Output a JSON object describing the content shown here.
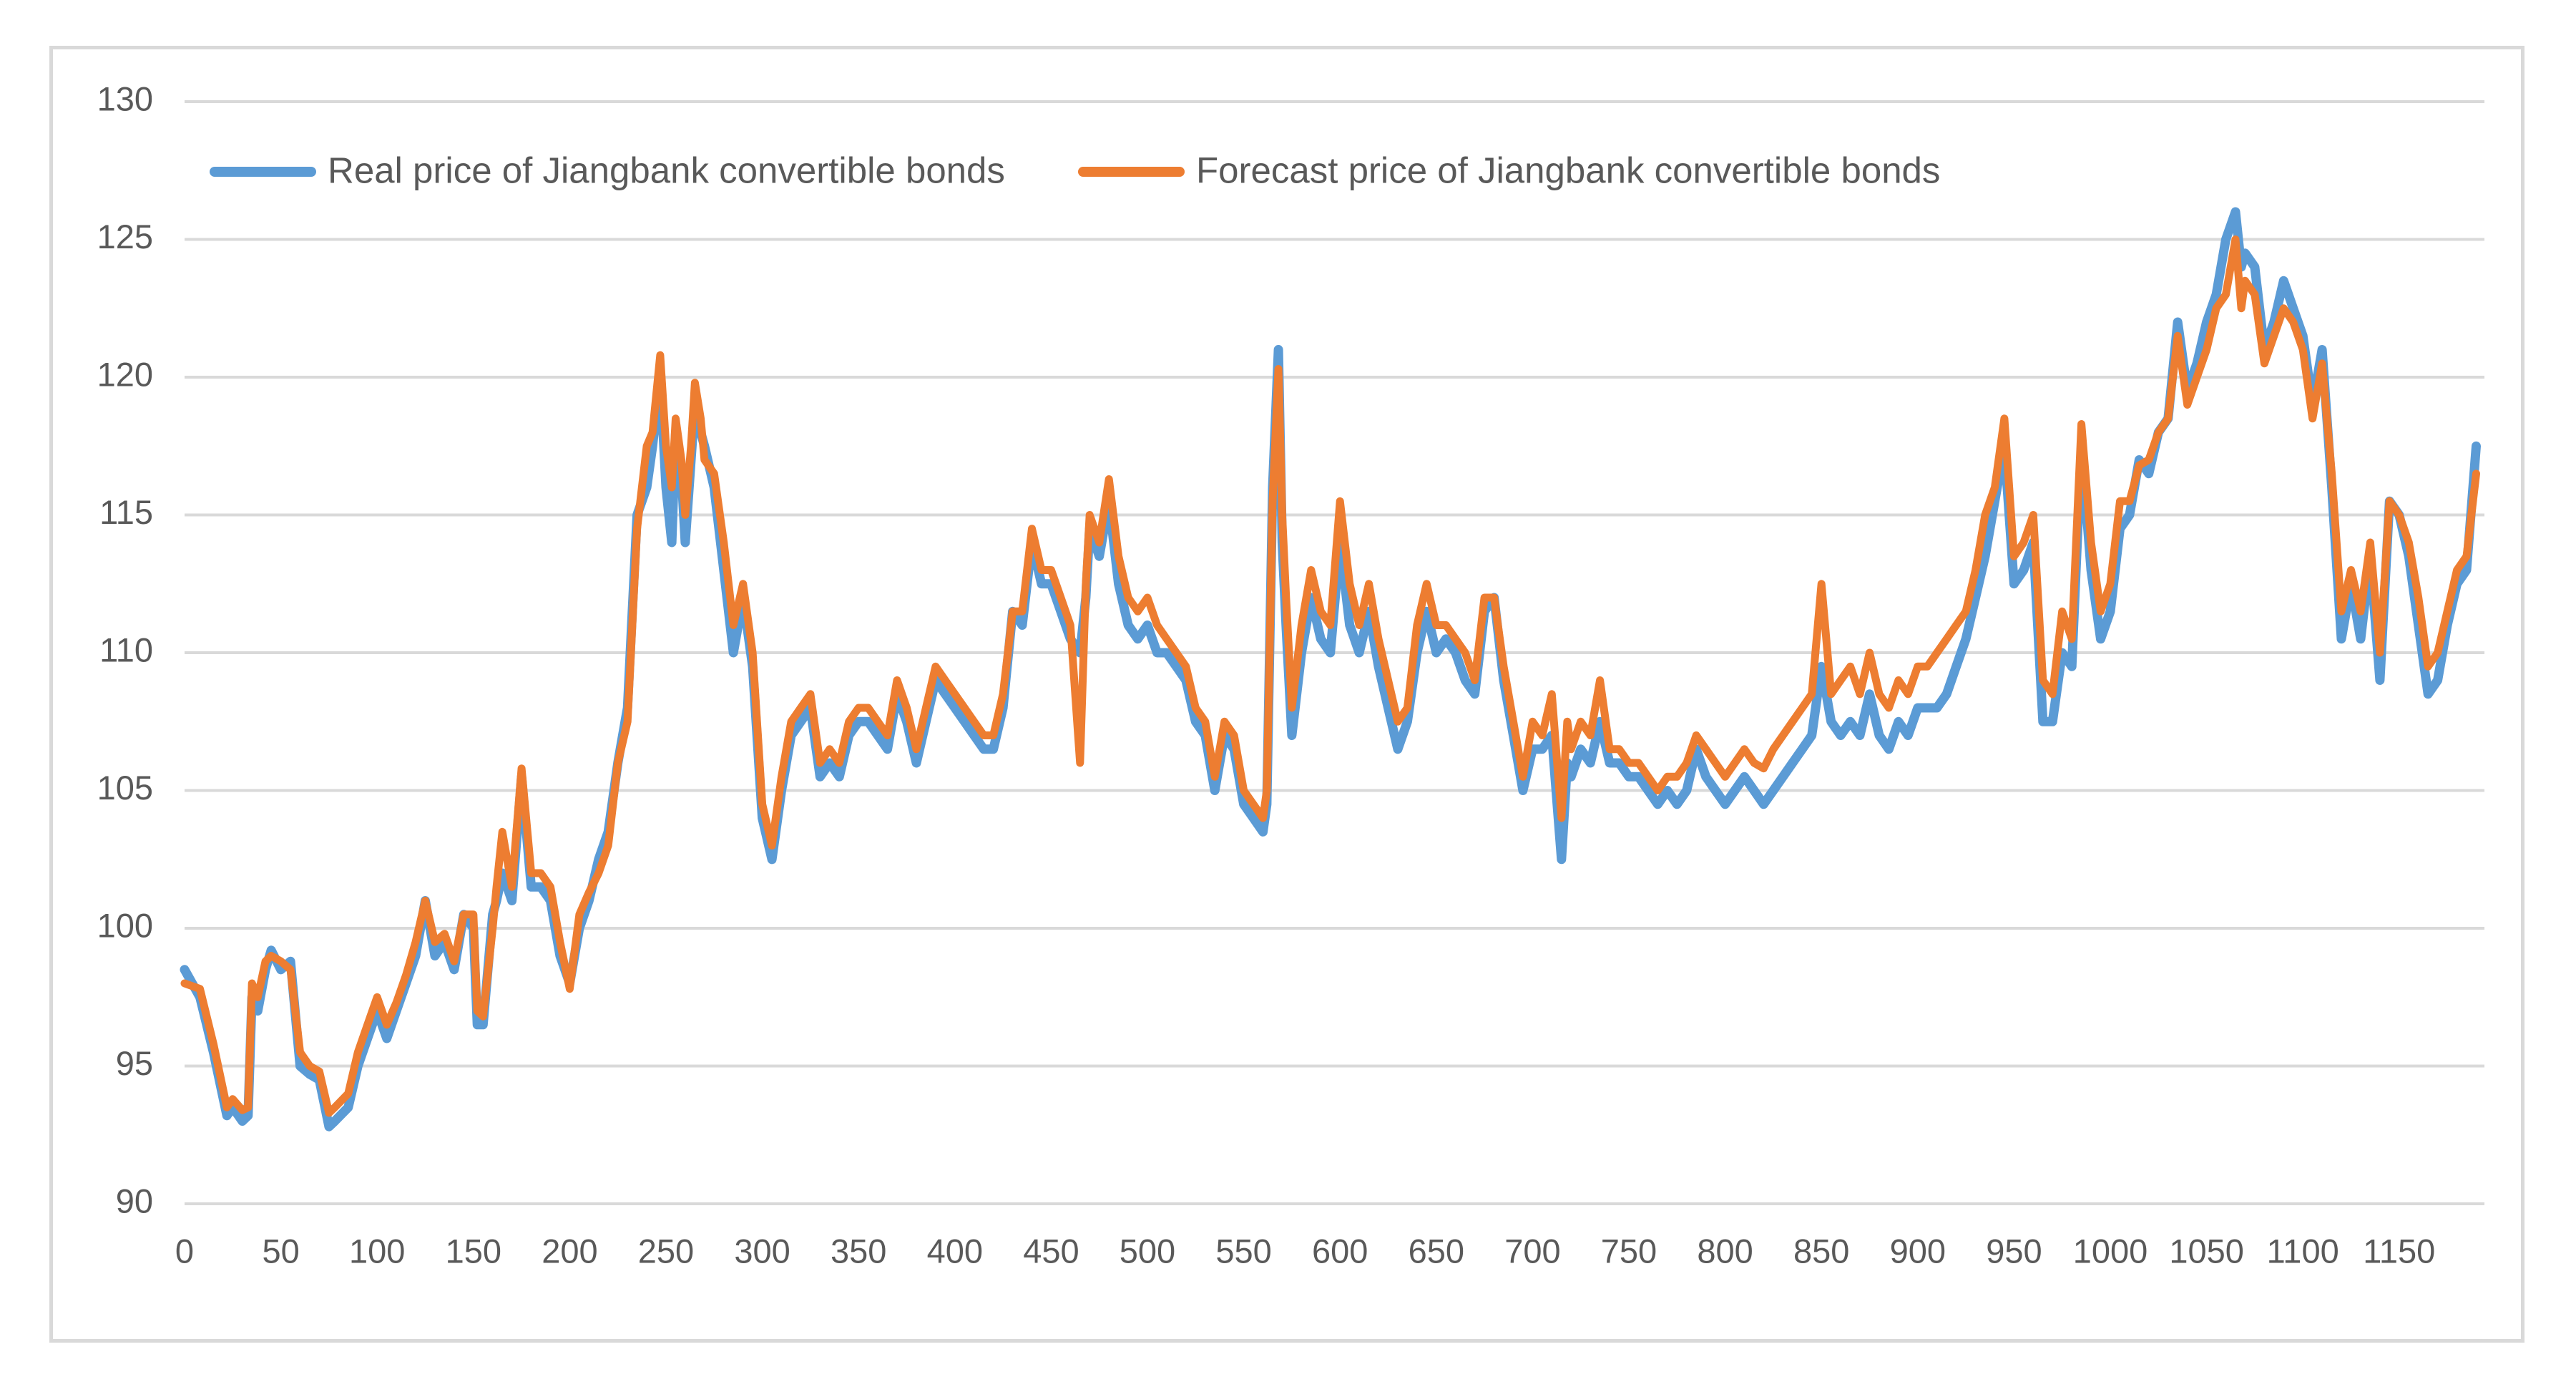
{
  "chart_data": {
    "type": "line",
    "title": "",
    "xlabel": "",
    "ylabel": "",
    "xlim": [
      0,
      1195
    ],
    "ylim": [
      90,
      130
    ],
    "y_ticks": [
      90,
      95,
      100,
      105,
      110,
      115,
      120,
      125,
      130
    ],
    "x_ticks": [
      0,
      50,
      100,
      150,
      200,
      250,
      300,
      350,
      400,
      450,
      500,
      550,
      600,
      650,
      700,
      750,
      800,
      850,
      900,
      950,
      1000,
      1050,
      1100,
      1150
    ],
    "grid": "horizontal",
    "legend_position": "top-left",
    "series": [
      {
        "name": "Real price of Jiangbank convertible bonds",
        "color": "#5b9bd5",
        "x": [
          0,
          8,
          15,
          22,
          25,
          30,
          33,
          35,
          38,
          42,
          45,
          50,
          55,
          60,
          65,
          70,
          75,
          78,
          85,
          90,
          95,
          100,
          105,
          110,
          115,
          120,
          125,
          130,
          135,
          140,
          145,
          150,
          152,
          155,
          160,
          162,
          165,
          170,
          175,
          180,
          185,
          190,
          195,
          200,
          205,
          210,
          215,
          220,
          225,
          230,
          235,
          240,
          243,
          247,
          250,
          253,
          255,
          258,
          260,
          263,
          265,
          268,
          270,
          275,
          280,
          285,
          290,
          295,
          300,
          305,
          310,
          315,
          320,
          325,
          330,
          335,
          340,
          345,
          350,
          355,
          360,
          365,
          370,
          375,
          380,
          385,
          390,
          395,
          400,
          405,
          410,
          415,
          420,
          425,
          430,
          435,
          440,
          445,
          450,
          455,
          460,
          465,
          468,
          470,
          475,
          480,
          485,
          490,
          495,
          500,
          505,
          510,
          515,
          520,
          525,
          530,
          535,
          540,
          545,
          550,
          555,
          560,
          562,
          565,
          568,
          570,
          572,
          575,
          580,
          585,
          590,
          595,
          600,
          605,
          610,
          615,
          620,
          625,
          630,
          635,
          640,
          645,
          650,
          655,
          660,
          665,
          670,
          675,
          680,
          685,
          690,
          695,
          700,
          705,
          710,
          715,
          718,
          720,
          725,
          730,
          735,
          740,
          745,
          750,
          755,
          760,
          765,
          770,
          775,
          780,
          785,
          790,
          795,
          800,
          805,
          810,
          815,
          820,
          825,
          830,
          835,
          840,
          845,
          850,
          855,
          860,
          865,
          870,
          875,
          880,
          885,
          890,
          895,
          900,
          905,
          910,
          915,
          920,
          925,
          930,
          935,
          940,
          945,
          950,
          955,
          960,
          965,
          970,
          975,
          980,
          985,
          990,
          995,
          1000,
          1005,
          1010,
          1015,
          1020,
          1025,
          1030,
          1035,
          1040,
          1045,
          1050,
          1055,
          1060,
          1065,
          1068,
          1070,
          1075,
          1080,
          1085,
          1090,
          1095,
          1100,
          1105,
          1110,
          1115,
          1120,
          1125,
          1130,
          1135,
          1140,
          1145,
          1150,
          1155,
          1160,
          1165,
          1170,
          1175,
          1180,
          1185,
          1190
        ],
        "values": [
          98.5,
          97.5,
          95.5,
          93.2,
          93.5,
          93.0,
          93.2,
          97.5,
          97.0,
          98.5,
          99.2,
          98.5,
          98.8,
          95.0,
          94.7,
          94.5,
          92.8,
          93.0,
          93.5,
          95.0,
          96.0,
          97.0,
          96.0,
          97.0,
          98.0,
          99.0,
          101.0,
          99.0,
          99.5,
          98.5,
          100.5,
          100.0,
          96.5,
          96.5,
          100.5,
          101.0,
          102.0,
          101.0,
          105.5,
          101.5,
          101.5,
          101.0,
          99.0,
          98.0,
          100.0,
          101.0,
          102.5,
          103.5,
          106.0,
          108.0,
          115.0,
          116.0,
          117.5,
          120.0,
          116.0,
          114.0,
          118.0,
          116.5,
          114.0,
          117.0,
          119.0,
          118.0,
          117.5,
          116.0,
          113.0,
          110.0,
          112.0,
          109.5,
          104.0,
          102.5,
          105.0,
          107.0,
          107.5,
          108.0,
          105.5,
          106.0,
          105.5,
          107.0,
          107.5,
          107.5,
          107.0,
          106.5,
          108.5,
          107.5,
          106.0,
          107.5,
          109.0,
          108.5,
          108.0,
          107.5,
          107.0,
          106.5,
          106.5,
          108.0,
          111.5,
          111.0,
          114.0,
          112.5,
          112.5,
          111.5,
          110.5,
          110.0,
          112.0,
          114.5,
          113.5,
          115.5,
          112.5,
          111.0,
          110.5,
          111.0,
          110.0,
          110.0,
          109.5,
          109.0,
          107.5,
          107.0,
          105.0,
          107.0,
          106.5,
          104.5,
          104.0,
          103.5,
          104.5,
          116.0,
          121.0,
          114.0,
          111.0,
          107.0,
          110.0,
          112.0,
          110.5,
          110.0,
          114.0,
          111.0,
          110.0,
          111.5,
          109.5,
          108.0,
          106.5,
          107.5,
          110.0,
          111.5,
          110.0,
          110.5,
          110.0,
          109.0,
          108.5,
          111.5,
          112.0,
          109.0,
          107.0,
          105.0,
          106.5,
          106.5,
          107.0,
          102.5,
          106.0,
          105.5,
          106.5,
          106.0,
          107.5,
          106.0,
          106.0,
          105.5,
          105.5,
          105.0,
          104.5,
          105.0,
          104.5,
          105.0,
          106.5,
          105.5,
          105.0,
          104.5,
          105.0,
          105.5,
          105.0,
          104.5,
          105.0,
          105.5,
          106.0,
          106.5,
          107.0,
          109.5,
          107.5,
          107.0,
          107.5,
          107.0,
          108.5,
          107.0,
          106.5,
          107.5,
          107.0,
          108.0,
          108.0,
          108.0,
          108.5,
          109.5,
          110.5,
          112.0,
          113.5,
          115.5,
          117.5,
          112.5,
          113.0,
          114.0,
          107.5,
          107.5,
          110.0,
          109.5,
          117.5,
          113.0,
          110.5,
          111.5,
          114.5,
          115.0,
          117.0,
          116.5,
          118.0,
          118.5,
          122.0,
          119.5,
          120.5,
          122.0,
          123.0,
          125.0,
          126.0,
          124.0,
          124.5,
          124.0,
          121.0,
          122.0,
          123.5,
          122.5,
          121.5,
          119.0,
          121.0,
          116.0,
          110.5,
          112.5,
          110.5,
          113.5,
          109.0,
          115.5,
          115.0,
          113.5,
          111.0,
          108.5,
          109.0,
          111.0,
          112.5,
          113.0,
          117.5
        ]
      },
      {
        "name": "Forecast price of Jiangbank convertible bonds",
        "color": "#ed7d31",
        "x": [
          0,
          8,
          15,
          22,
          25,
          30,
          33,
          35,
          38,
          42,
          45,
          50,
          55,
          60,
          65,
          70,
          75,
          78,
          85,
          90,
          95,
          100,
          105,
          110,
          115,
          120,
          125,
          130,
          135,
          140,
          145,
          150,
          152,
          155,
          160,
          162,
          165,
          170,
          175,
          180,
          185,
          190,
          195,
          200,
          205,
          210,
          215,
          220,
          225,
          230,
          235,
          240,
          243,
          247,
          250,
          253,
          255,
          258,
          260,
          263,
          265,
          268,
          270,
          275,
          280,
          285,
          290,
          295,
          300,
          305,
          310,
          315,
          320,
          325,
          330,
          335,
          340,
          345,
          350,
          355,
          360,
          365,
          370,
          375,
          380,
          385,
          390,
          395,
          400,
          405,
          410,
          415,
          420,
          425,
          430,
          435,
          440,
          445,
          450,
          455,
          460,
          465,
          468,
          470,
          475,
          480,
          485,
          490,
          495,
          500,
          505,
          510,
          515,
          520,
          525,
          530,
          535,
          540,
          545,
          550,
          555,
          560,
          562,
          565,
          568,
          570,
          572,
          575,
          580,
          585,
          590,
          595,
          600,
          605,
          610,
          615,
          620,
          625,
          630,
          635,
          640,
          645,
          650,
          655,
          660,
          665,
          670,
          675,
          680,
          685,
          690,
          695,
          700,
          705,
          710,
          715,
          718,
          720,
          725,
          730,
          735,
          740,
          745,
          750,
          755,
          760,
          765,
          770,
          775,
          780,
          785,
          790,
          795,
          800,
          805,
          810,
          815,
          820,
          825,
          830,
          835,
          840,
          845,
          850,
          855,
          860,
          865,
          870,
          875,
          880,
          885,
          890,
          895,
          900,
          905,
          910,
          915,
          920,
          925,
          930,
          935,
          940,
          945,
          950,
          955,
          960,
          965,
          970,
          975,
          980,
          985,
          990,
          995,
          1000,
          1005,
          1010,
          1015,
          1020,
          1025,
          1030,
          1035,
          1040,
          1045,
          1050,
          1055,
          1060,
          1065,
          1068,
          1070,
          1075,
          1080,
          1085,
          1090,
          1095,
          1100,
          1105,
          1110,
          1115,
          1120,
          1125,
          1130,
          1135,
          1140,
          1145,
          1150,
          1155,
          1160,
          1165,
          1170,
          1175,
          1180,
          1185,
          1190
        ],
        "values": [
          98.0,
          97.8,
          95.8,
          93.5,
          93.8,
          93.4,
          93.5,
          98.0,
          97.5,
          98.8,
          99.0,
          98.8,
          98.5,
          95.5,
          95.0,
          94.8,
          93.3,
          93.5,
          94.0,
          95.5,
          96.5,
          97.5,
          96.5,
          97.3,
          98.3,
          99.5,
          101.0,
          99.5,
          99.8,
          98.8,
          100.5,
          100.5,
          97.0,
          96.8,
          100.0,
          101.5,
          103.5,
          101.5,
          105.8,
          102.0,
          102.0,
          101.5,
          99.5,
          97.8,
          100.5,
          101.3,
          102.0,
          103.0,
          106.0,
          107.5,
          114.5,
          117.5,
          118.0,
          120.8,
          117.5,
          116.0,
          118.5,
          117.0,
          115.0,
          117.5,
          119.8,
          118.5,
          117.0,
          116.5,
          114.0,
          111.0,
          112.5,
          110.0,
          104.5,
          103.0,
          105.5,
          107.5,
          108.0,
          108.5,
          106.0,
          106.5,
          106.0,
          107.5,
          108.0,
          108.0,
          107.5,
          107.0,
          109.0,
          108.0,
          106.5,
          108.0,
          109.5,
          109.0,
          108.5,
          108.0,
          107.5,
          107.0,
          107.0,
          108.5,
          111.5,
          111.5,
          114.5,
          113.0,
          113.0,
          112.0,
          111.0,
          106.0,
          112.5,
          115.0,
          114.0,
          116.3,
          113.5,
          112.0,
          111.5,
          112.0,
          111.0,
          110.5,
          110.0,
          109.5,
          108.0,
          107.5,
          105.5,
          107.5,
          107.0,
          105.0,
          104.5,
          104.0,
          105.0,
          115.5,
          120.3,
          115.0,
          112.0,
          108.0,
          111.0,
          113.0,
          111.5,
          111.0,
          115.5,
          112.5,
          111.0,
          112.5,
          110.5,
          109.0,
          107.5,
          108.0,
          111.0,
          112.5,
          111.0,
          111.0,
          110.5,
          110.0,
          109.0,
          112.0,
          112.0,
          109.5,
          107.5,
          105.5,
          107.5,
          107.0,
          108.5,
          104.0,
          107.5,
          106.5,
          107.5,
          107.0,
          109.0,
          106.5,
          106.5,
          106.0,
          106.0,
          105.5,
          105.0,
          105.5,
          105.5,
          106.0,
          107.0,
          106.5,
          106.0,
          105.5,
          106.0,
          106.5,
          106.0,
          105.8,
          106.5,
          107.0,
          107.5,
          108.0,
          108.5,
          112.5,
          108.5,
          109.0,
          109.5,
          108.5,
          110.0,
          108.5,
          108.0,
          109.0,
          108.5,
          109.5,
          109.5,
          110.0,
          110.5,
          111.0,
          111.5,
          113.0,
          115.0,
          116.0,
          118.5,
          113.5,
          114.0,
          115.0,
          109.0,
          108.5,
          111.5,
          110.5,
          118.3,
          114.0,
          111.5,
          112.5,
          115.5,
          115.5,
          116.8,
          117.0,
          118.0,
          118.5,
          121.5,
          119.0,
          120.0,
          121.0,
          122.5,
          123.0,
          125.0,
          122.5,
          123.5,
          123.0,
          120.5,
          121.5,
          122.5,
          122.0,
          121.0,
          118.5,
          120.5,
          116.5,
          111.5,
          113.0,
          111.5,
          114.0,
          110.0,
          115.5,
          115.0,
          114.0,
          112.0,
          109.5,
          110.0,
          111.5,
          113.0,
          113.5,
          116.5
        ]
      }
    ]
  }
}
